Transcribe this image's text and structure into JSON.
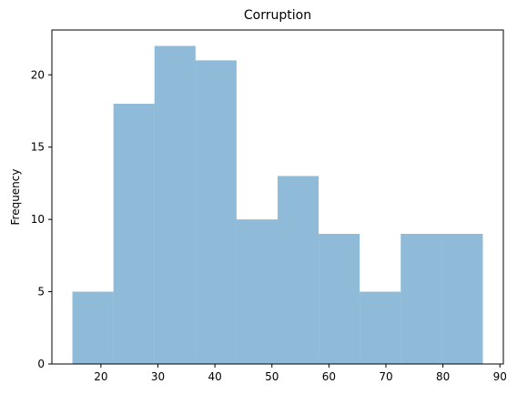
{
  "chart_data": {
    "type": "bar",
    "subtype": "histogram",
    "title": "Corruption",
    "xlabel": "",
    "ylabel": "Frequency",
    "bin_edges": [
      15.0,
      22.2,
      29.4,
      36.6,
      43.8,
      51.0,
      58.2,
      65.4,
      72.6,
      79.8,
      87.0
    ],
    "values": [
      5,
      18,
      22,
      21,
      10,
      13,
      9,
      5,
      9,
      9
    ],
    "xlim": [
      11.4,
      90.6
    ],
    "ylim": [
      0,
      23.1
    ],
    "xticks": [
      20,
      30,
      40,
      50,
      60,
      70,
      80,
      90
    ],
    "yticks": [
      0,
      5,
      10,
      15,
      20
    ],
    "bar_color": "#1f77b4",
    "bar_opacity": 0.5,
    "grid": false,
    "legend": "none"
  }
}
